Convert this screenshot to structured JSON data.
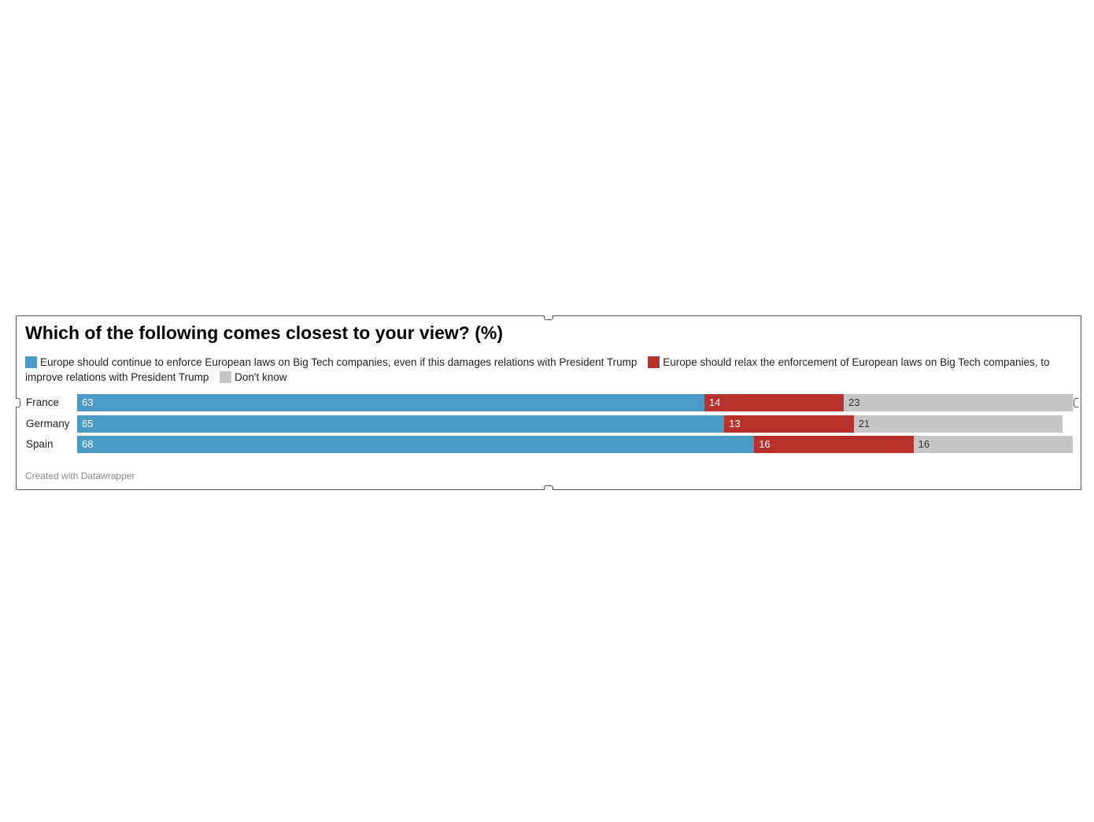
{
  "chart_data": {
    "type": "bar",
    "orientation": "horizontal",
    "stacked": true,
    "title": "Which of the following comes closest to your view? (%)",
    "categories": [
      "France",
      "Germany",
      "Spain"
    ],
    "series": [
      {
        "name": "Europe should continue to enforce European laws on Big Tech companies, even if this damages relations with President Trump",
        "color": "#4a9cc7",
        "values": [
          63,
          65,
          68
        ]
      },
      {
        "name": "Europe should relax the enforcement of European laws on Big Tech companies, to improve relations with President Trump",
        "color": "#b9312b",
        "values": [
          14,
          13,
          16
        ]
      },
      {
        "name": "Don't know",
        "color": "#c6c6c6",
        "values": [
          23,
          21,
          16
        ]
      }
    ],
    "label_colors": [
      "#ffffff",
      "#ffffff",
      "#333333"
    ],
    "legend_position": "top",
    "grid": false
  },
  "footer": "Created with Datawrapper"
}
